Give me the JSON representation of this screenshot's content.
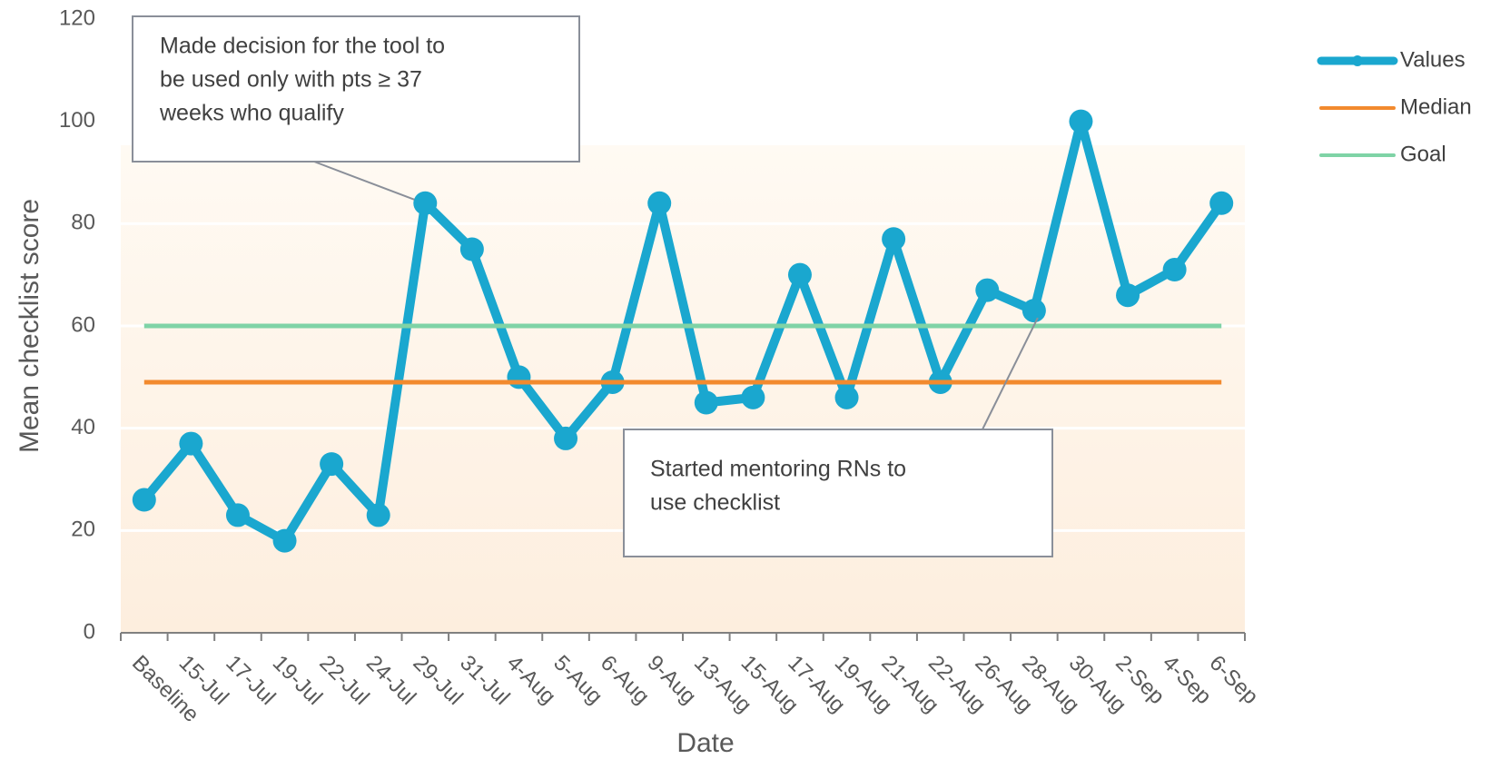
{
  "chart_data": {
    "type": "line",
    "x_label": "Date",
    "y_label": "Mean checklist score",
    "categories": [
      "Baseline",
      "15-Jul",
      "17-Jul",
      "19-Jul",
      "22-Jul",
      "24-Jul",
      "29-Jul",
      "31-Jul",
      "4-Aug",
      "5-Aug",
      "6-Aug",
      "9-Aug",
      "13-Aug",
      "15-Aug",
      "17-Aug",
      "19-Aug",
      "21-Aug",
      "22-Aug",
      "26-Aug",
      "28-Aug",
      "30-Aug",
      "2-Sep",
      "4-Sep",
      "6-Sep"
    ],
    "series": [
      {
        "name": "Values",
        "color": "#1aa7cf",
        "markers": true,
        "values": [
          26,
          37,
          23,
          18,
          33,
          23,
          84,
          75,
          50,
          38,
          49,
          84,
          45,
          46,
          70,
          46,
          77,
          49,
          67,
          63,
          100,
          66,
          71,
          84
        ]
      },
      {
        "name": "Median",
        "color": "#f28a2e",
        "markers": false,
        "values": [
          49,
          49,
          49,
          49,
          49,
          49,
          49,
          49,
          49,
          49,
          49,
          49,
          49,
          49,
          49,
          49,
          49,
          49,
          49,
          49,
          49,
          49,
          49,
          49
        ]
      },
      {
        "name": "Goal",
        "color": "#7fd3a6",
        "markers": false,
        "values": [
          60,
          60,
          60,
          60,
          60,
          60,
          60,
          60,
          60,
          60,
          60,
          60,
          60,
          60,
          60,
          60,
          60,
          60,
          60,
          60,
          60,
          60,
          60,
          60
        ]
      }
    ],
    "ylim": [
      0,
      120
    ],
    "yticks": [
      0,
      20,
      40,
      60,
      80,
      100,
      120
    ],
    "grid": true,
    "legend": "right",
    "annotations": [
      {
        "lines": [
          "Made decision for the tool to",
          "be used only with pts ≥ 37",
          "weeks who qualify"
        ],
        "category": 6
      },
      {
        "lines": [
          "Started mentoring RNs to",
          "use checklist"
        ],
        "category": 19
      }
    ]
  }
}
